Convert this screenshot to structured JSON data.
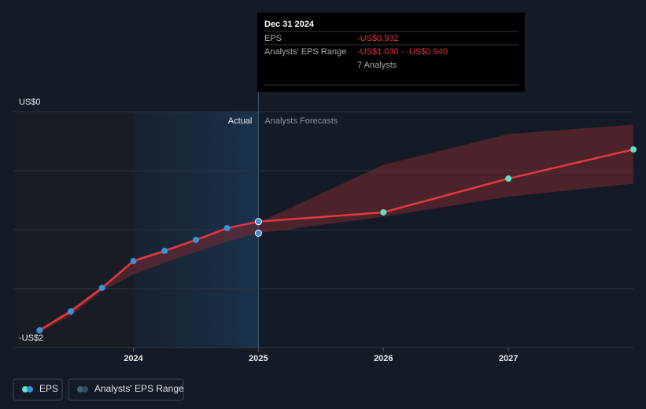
{
  "chart_data": {
    "type": "line",
    "xlim": [
      2023.04,
      2028
    ],
    "ylim": [
      -2,
      0
    ],
    "xticks": [
      2024,
      2025,
      2026,
      2027
    ],
    "yticks": [
      {
        "value": 0,
        "label": "US$0"
      },
      {
        "value": -0.5,
        "label": null
      },
      {
        "value": -1,
        "label": null
      },
      {
        "value": -1.5,
        "label": null
      },
      {
        "value": -2,
        "label": "-US$2"
      }
    ],
    "grid": true,
    "highlight": [
      2024,
      2025
    ],
    "actual_label": "Actual",
    "forecast_label": "Analysts Forecasts",
    "series": [
      {
        "name": "EPS",
        "color": "#e0393e",
        "actual_color": "#3b8fd9",
        "forecast_color": "#5fe0c5",
        "x": [
          2023.25,
          2023.5,
          2023.75,
          2024,
          2024.25,
          2024.5,
          2024.75,
          2025,
          2026,
          2027,
          2028
        ],
        "values": [
          -1.853,
          -1.693,
          -1.493,
          -1.267,
          -1.18,
          -1.087,
          -0.987,
          -0.932,
          -0.853,
          -0.567,
          -0.32
        ]
      },
      {
        "name": "Analysts' EPS Range",
        "color": "#7a2a30",
        "x": [
          2023.25,
          2023.5,
          2023.75,
          2024,
          2024.25,
          2024.5,
          2024.75,
          2025,
          2026,
          2027,
          2028
        ],
        "low": [
          -1.87,
          -1.73,
          -1.52,
          -1.38,
          -1.28,
          -1.19,
          -1.1,
          -1.03,
          -0.89,
          -0.72,
          -0.61
        ],
        "high": [
          -1.84,
          -1.67,
          -1.48,
          -1.25,
          -1.17,
          -1.08,
          -0.98,
          -0.94,
          -0.45,
          -0.19,
          -0.11
        ]
      }
    ],
    "tooltip": {
      "date": "Dec 31 2024",
      "rows": [
        {
          "label": "EPS",
          "value": "-US$0.932"
        },
        {
          "label": "Analysts' EPS Range",
          "value": "-US$1.030 - -US$0.940"
        }
      ],
      "analysts": "7 Analysts"
    }
  }
}
